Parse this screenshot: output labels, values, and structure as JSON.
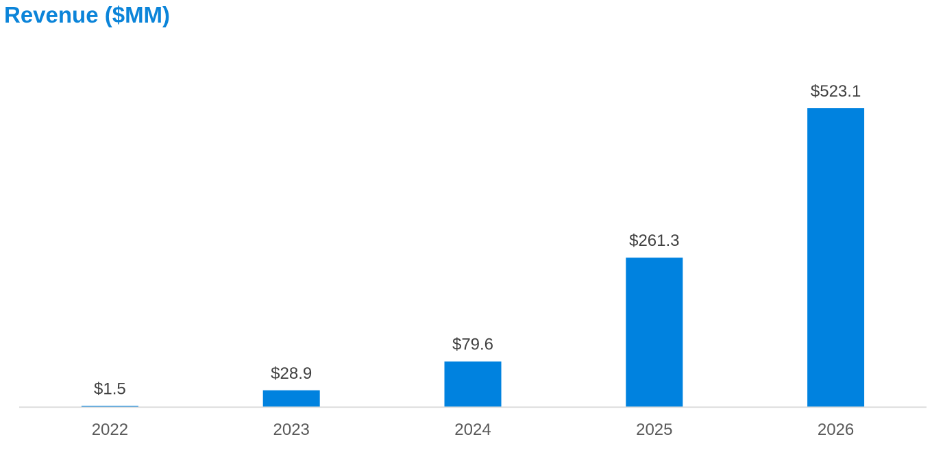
{
  "chart_data": {
    "type": "bar",
    "title": "Revenue ($MM)",
    "xlabel": "",
    "ylabel": "",
    "categories": [
      "2022",
      "2023",
      "2024",
      "2025",
      "2026"
    ],
    "values": [
      1.5,
      28.9,
      79.6,
      261.3,
      523.1
    ],
    "data_labels": [
      "$1.5",
      "$28.9",
      "$79.6",
      "$261.3",
      "$523.1"
    ],
    "ylim": [
      0,
      523.1
    ],
    "grid": false,
    "legend": "none",
    "colors": {
      "bar": "#0082DF",
      "title": "#0B84D9",
      "axis": "#D9D9D9"
    }
  }
}
